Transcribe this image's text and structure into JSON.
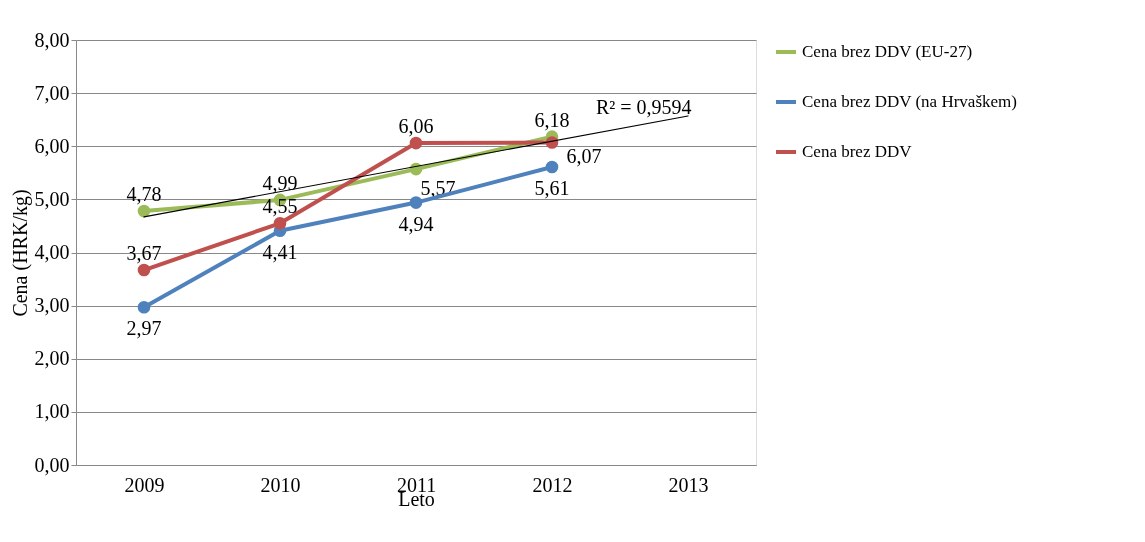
{
  "chart_data": {
    "type": "line",
    "xlabel": "Leto",
    "ylabel": "Cena (HRK/kg)",
    "categories": [
      "2009",
      "2010",
      "2011",
      "2012",
      "2013"
    ],
    "series": [
      {
        "name": "Cena brez DDV (EU-27)",
        "color": "#9bbb59",
        "values": [
          4.78,
          4.99,
          5.57,
          6.18,
          null
        ],
        "value_labels": [
          "4,78",
          "4,99",
          "5,57",
          "6,18",
          null
        ]
      },
      {
        "name": "Cena brez DDV (na Hrvaškem)",
        "color": "#4f81bd",
        "values": [
          2.97,
          4.41,
          4.94,
          5.61,
          null
        ],
        "value_labels": [
          "2,97",
          "4,41",
          "4,94",
          "5,61",
          null
        ]
      },
      {
        "name": "Cena brez DDV",
        "color": "#c0504d",
        "values": [
          3.67,
          4.55,
          6.06,
          6.07,
          null
        ],
        "value_labels": [
          "3,67",
          "4,55",
          "6,06",
          "6,07",
          null
        ]
      },
      {
        "type": "line",
        "color": "#000000",
        "marker": "none",
        "values": [
          4.67,
          null,
          null,
          null,
          6.57
        ]
      }
    ],
    "annotations": [
      "R² = 0,9594"
    ],
    "ylim": [
      0,
      8
    ],
    "yticks": [
      {
        "value": 0,
        "label": "0,00"
      },
      {
        "value": 1,
        "label": "1,00"
      },
      {
        "value": 2,
        "label": "2,00"
      },
      {
        "value": 3,
        "label": "3,00"
      },
      {
        "value": 4,
        "label": "4,00"
      },
      {
        "value": 5,
        "label": "5,00"
      },
      {
        "value": 6,
        "label": "6,00"
      },
      {
        "value": 7,
        "label": "7,00"
      },
      {
        "value": 8,
        "label": "8,00"
      }
    ],
    "grid": "y",
    "legend": "right",
    "marker": "circle",
    "line_style": "solid"
  }
}
